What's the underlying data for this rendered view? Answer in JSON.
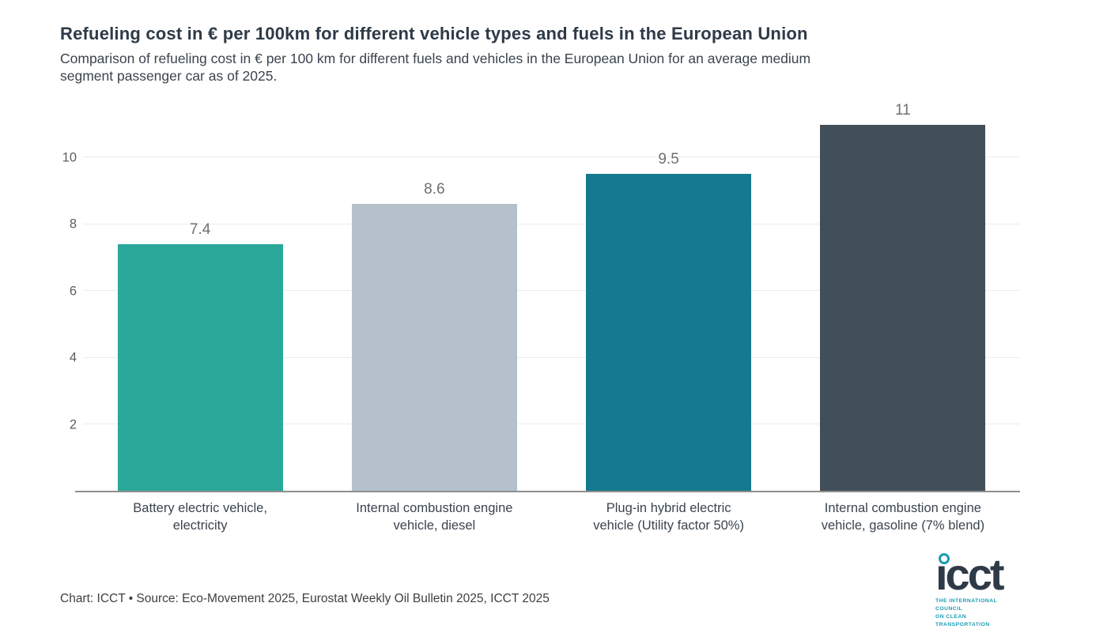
{
  "header": {
    "title": "Refueling cost in € per 100km for different vehicle types and fuels in the European Union",
    "subtitle": "Comparison of refueling cost in € per 100 km for different fuels and vehicles in the European Union for an average medium\nsegment passenger car as of 2025."
  },
  "chart_data": {
    "type": "bar",
    "categories": [
      "Battery electric vehicle,\nelectricity",
      "Internal combustion engine\nvehicle, diesel",
      "Plug-in hybrid electric\nvehicle (Utility factor 50%)",
      "Internal combustion engine\nvehicle, gasoline (7% blend)"
    ],
    "values": [
      7.4,
      8.6,
      9.5,
      11
    ],
    "value_labels": [
      "7.4",
      "8.6",
      "9.5",
      "11"
    ],
    "bar_colors": [
      "#2BA89A",
      "#B5C0CA",
      "#15798F",
      "#424E58"
    ],
    "title": "Refueling cost in € per 100km for different vehicle types and fuels in the European Union",
    "xlabel": "",
    "ylabel": "",
    "ylim": [
      0,
      11.6
    ],
    "yticks": [
      2,
      4,
      6,
      8,
      10
    ],
    "grid": true,
    "legend": false
  },
  "footer": {
    "attribution": "Chart: ICCT • Source: Eco-Movement 2025, Eurostat Weekly Oil Bulletin 2025, ICCT 2025"
  },
  "logo": {
    "word": "ıcct",
    "tagline_line1": "THE INTERNATIONAL COUNCIL",
    "tagline_line2": "ON CLEAN TRANSPORTATION"
  },
  "colors": {
    "title_text": "#2E3A47",
    "body_text": "#3A444E",
    "value_label": "#6F6F6F",
    "grid": "#ECECEC",
    "axis_line": "#8F8F8F",
    "logo_teal": "#1B9CB4"
  }
}
